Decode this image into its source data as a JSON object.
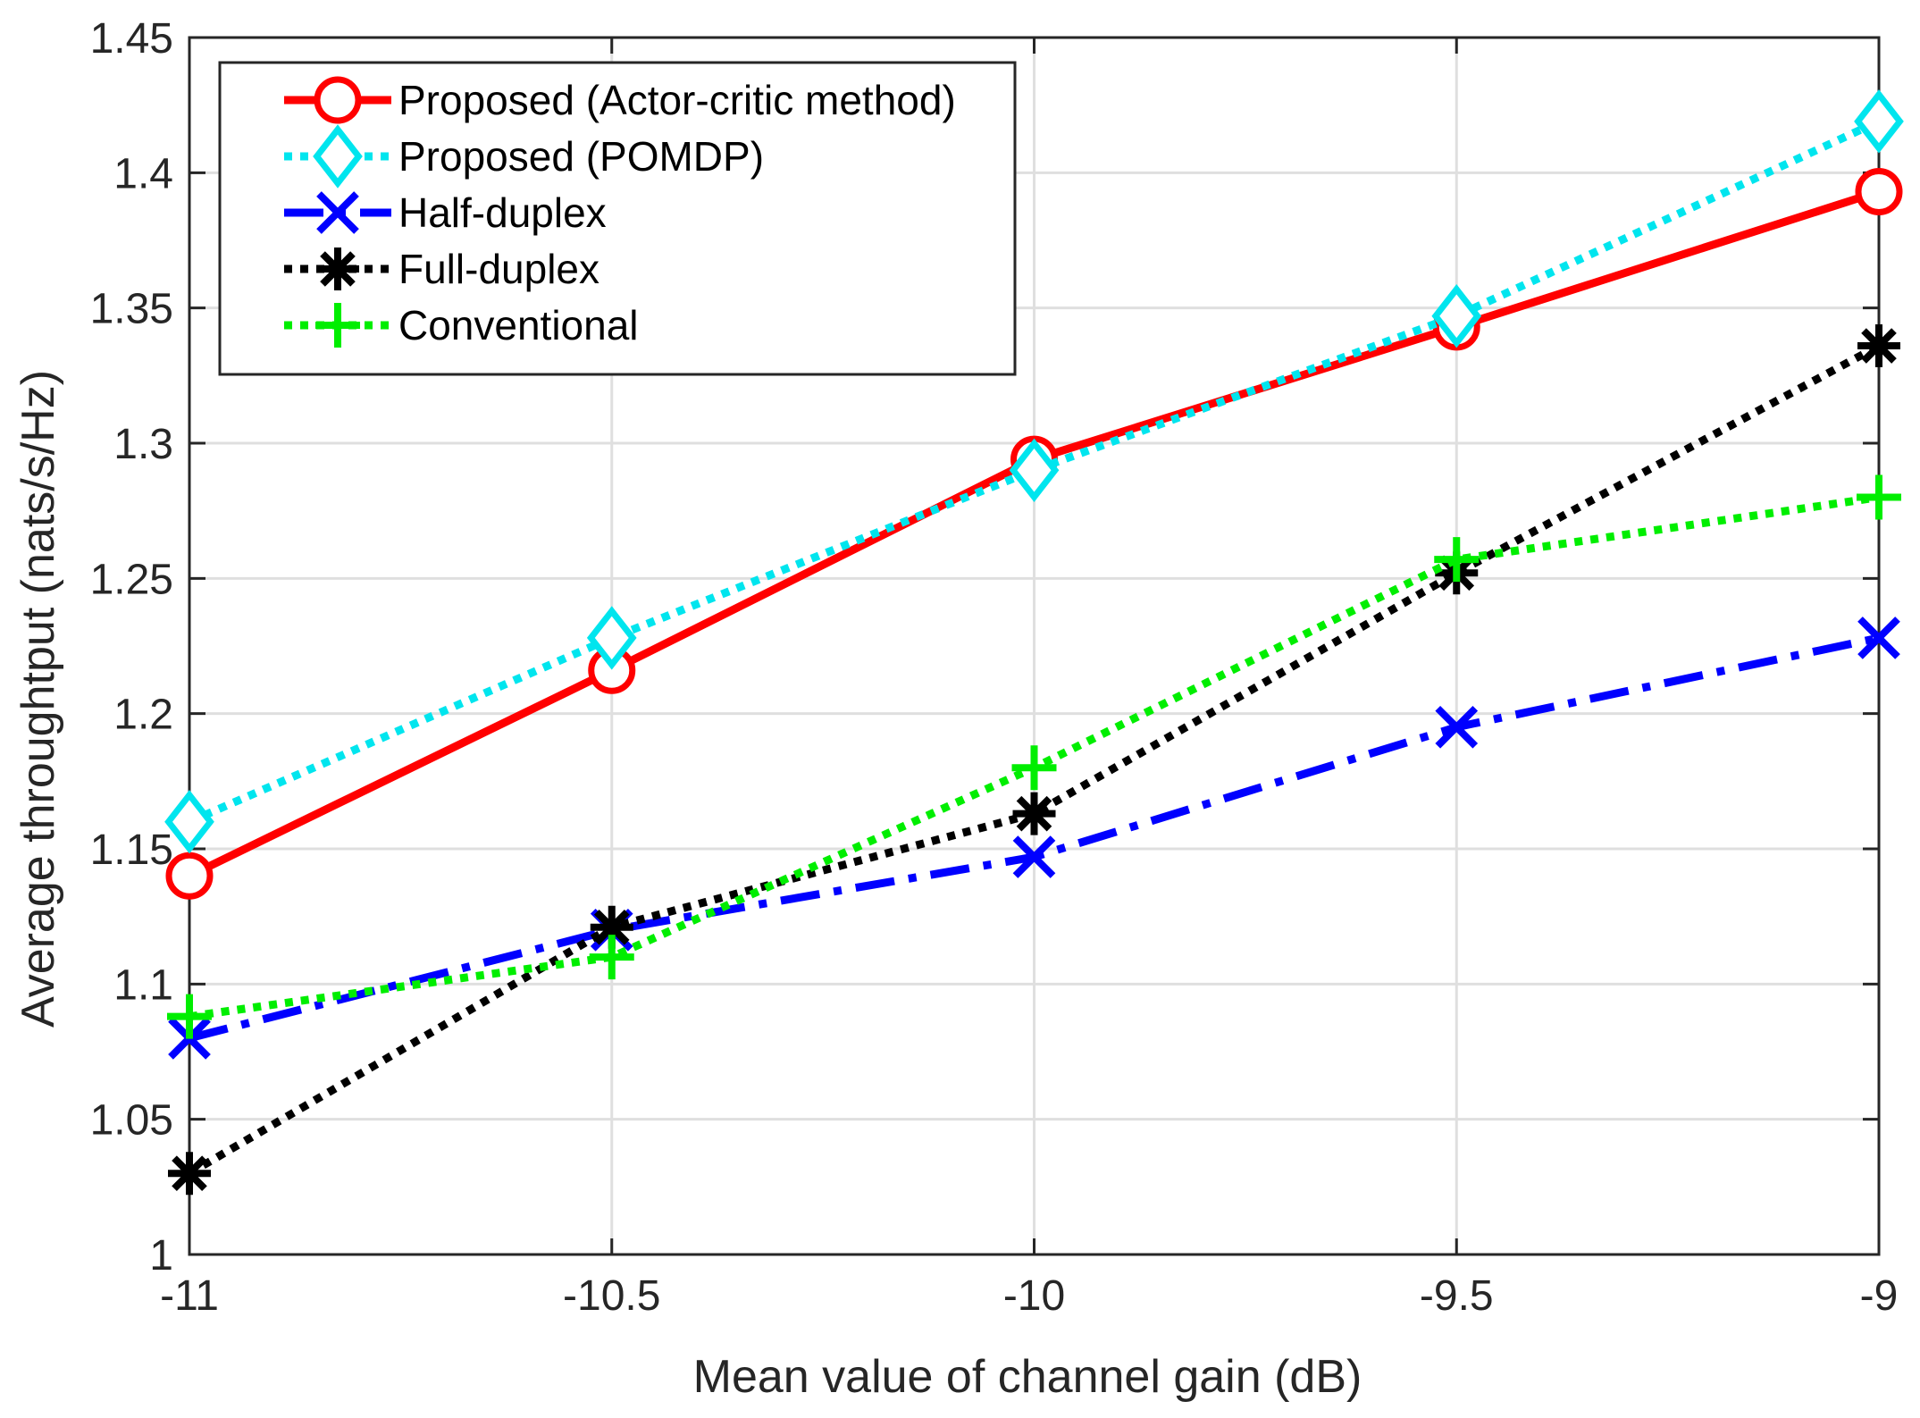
{
  "chart_data": {
    "type": "line",
    "title": "",
    "xlabel": "Mean value of channel gain (dB)",
    "ylabel": "Average throughtput (nats/s/Hz)",
    "x": [
      -11,
      -10.5,
      -10,
      -9.5,
      -9
    ],
    "xlim": [
      -11,
      -9
    ],
    "ylim": [
      1,
      1.45
    ],
    "xticks": [
      -11,
      -10.5,
      -10,
      -9.5,
      -9
    ],
    "xtick_labels": [
      "-11",
      "-10.5",
      "-10",
      "-9.5",
      "-9"
    ],
    "yticks": [
      1,
      1.05,
      1.1,
      1.15,
      1.2,
      1.25,
      1.3,
      1.35,
      1.4,
      1.45
    ],
    "ytick_labels": [
      "1",
      "1.05",
      "1.1",
      "1.15",
      "1.2",
      "1.25",
      "1.3",
      "1.35",
      "1.4",
      "1.45"
    ],
    "grid": true,
    "legend_position": "top-left",
    "series": [
      {
        "name": "Proposed (Actor-critic method)",
        "values": [
          1.14,
          1.216,
          1.294,
          1.343,
          1.393
        ],
        "color": "#ff0000",
        "line_style": "solid",
        "marker": "circle"
      },
      {
        "name": "Proposed (POMDP)",
        "values": [
          1.16,
          1.228,
          1.29,
          1.347,
          1.419
        ],
        "color": "#00e5ee",
        "line_style": "dotted",
        "marker": "diamond"
      },
      {
        "name": "Half-duplex",
        "values": [
          1.08,
          1.12,
          1.147,
          1.195,
          1.228
        ],
        "color": "#0000ff",
        "line_style": "dashdot",
        "marker": "x"
      },
      {
        "name": "Full-duplex",
        "values": [
          1.03,
          1.121,
          1.163,
          1.252,
          1.336
        ],
        "color": "#000000",
        "line_style": "dotted",
        "marker": "asterisk"
      },
      {
        "name": "Conventional",
        "values": [
          1.088,
          1.11,
          1.18,
          1.257,
          1.28
        ],
        "color": "#00ee00",
        "line_style": "dotted",
        "marker": "plus"
      }
    ]
  }
}
